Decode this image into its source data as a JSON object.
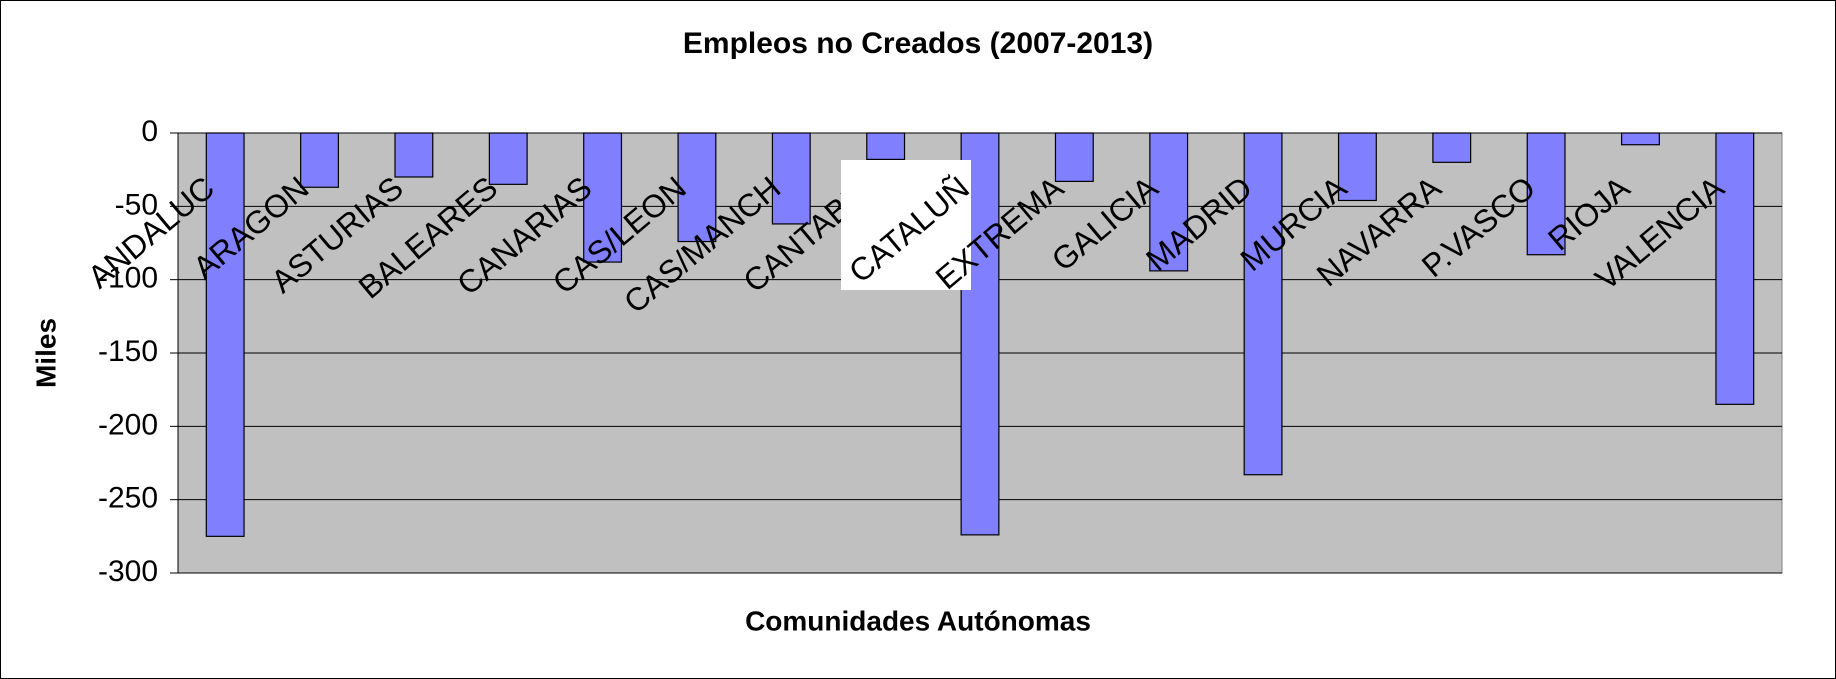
{
  "chart_data": {
    "type": "bar",
    "title": "Empleos no Creados (2007-2013)",
    "x_label": "Comunidades Autónomas",
    "y_label": "Miles",
    "categories": [
      "ANDALUC",
      "ARAGON",
      "ASTURIAS",
      "BALEARES",
      "CANARIAS",
      "CAS/LEON",
      "CAS/MANCH",
      "CANTABRI",
      "CATALUÑ",
      "EXTREMA",
      "GALICIA",
      "MADRID",
      "MURCIA",
      "NAVARRA",
      "P.VASCO",
      "RIOJA",
      "VALENCIA"
    ],
    "values": [
      -275,
      -37,
      -30,
      -35,
      -88,
      -74,
      -62,
      -18,
      -274,
      -33,
      -94,
      -233,
      -46,
      -20,
      -83,
      -8,
      -185
    ],
    "color": "#8080ff",
    "ylim": [
      -300,
      0
    ],
    "yticks": [
      0,
      -50,
      -100,
      -150,
      -200,
      -250,
      -300
    ],
    "grid": true
  }
}
